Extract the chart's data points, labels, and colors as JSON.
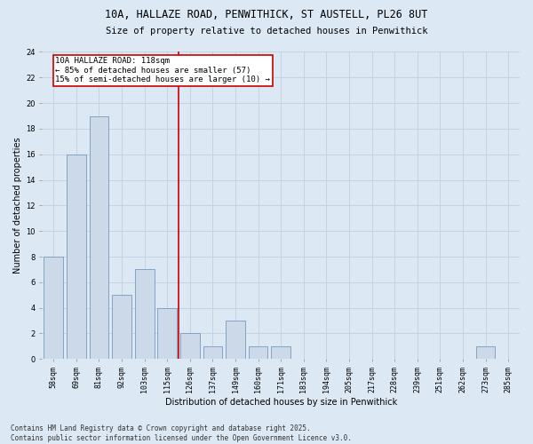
{
  "title_line1": "10A, HALLAZE ROAD, PENWITHICK, ST AUSTELL, PL26 8UT",
  "title_line2": "Size of property relative to detached houses in Penwithick",
  "xlabel": "Distribution of detached houses by size in Penwithick",
  "ylabel": "Number of detached properties",
  "categories": [
    "58sqm",
    "69sqm",
    "81sqm",
    "92sqm",
    "103sqm",
    "115sqm",
    "126sqm",
    "137sqm",
    "149sqm",
    "160sqm",
    "171sqm",
    "183sqm",
    "194sqm",
    "205sqm",
    "217sqm",
    "228sqm",
    "239sqm",
    "251sqm",
    "262sqm",
    "273sqm",
    "285sqm"
  ],
  "values": [
    8,
    16,
    19,
    5,
    7,
    4,
    2,
    1,
    3,
    1,
    1,
    0,
    0,
    0,
    0,
    0,
    0,
    0,
    0,
    1,
    0
  ],
  "bar_color": "#ccd9e8",
  "bar_edgecolor": "#7799bb",
  "grid_color": "#c0d0e0",
  "background_color": "#dce8f4",
  "red_line_index": 5.5,
  "red_line_color": "#cc0000",
  "annotation_text": "10A HALLAZE ROAD: 118sqm\n← 85% of detached houses are smaller (57)\n15% of semi-detached houses are larger (10) →",
  "annotation_box_facecolor": "#ffffff",
  "annotation_box_edgecolor": "#cc0000",
  "ylim": [
    0,
    24
  ],
  "yticks": [
    0,
    2,
    4,
    6,
    8,
    10,
    12,
    14,
    16,
    18,
    20,
    22,
    24
  ],
  "footer_line1": "Contains HM Land Registry data © Crown copyright and database right 2025.",
  "footer_line2": "Contains public sector information licensed under the Open Government Licence v3.0.",
  "title_fontsize": 8.5,
  "subtitle_fontsize": 7.5,
  "axis_label_fontsize": 7,
  "tick_fontsize": 6,
  "annotation_fontsize": 6.5,
  "footer_fontsize": 5.5
}
